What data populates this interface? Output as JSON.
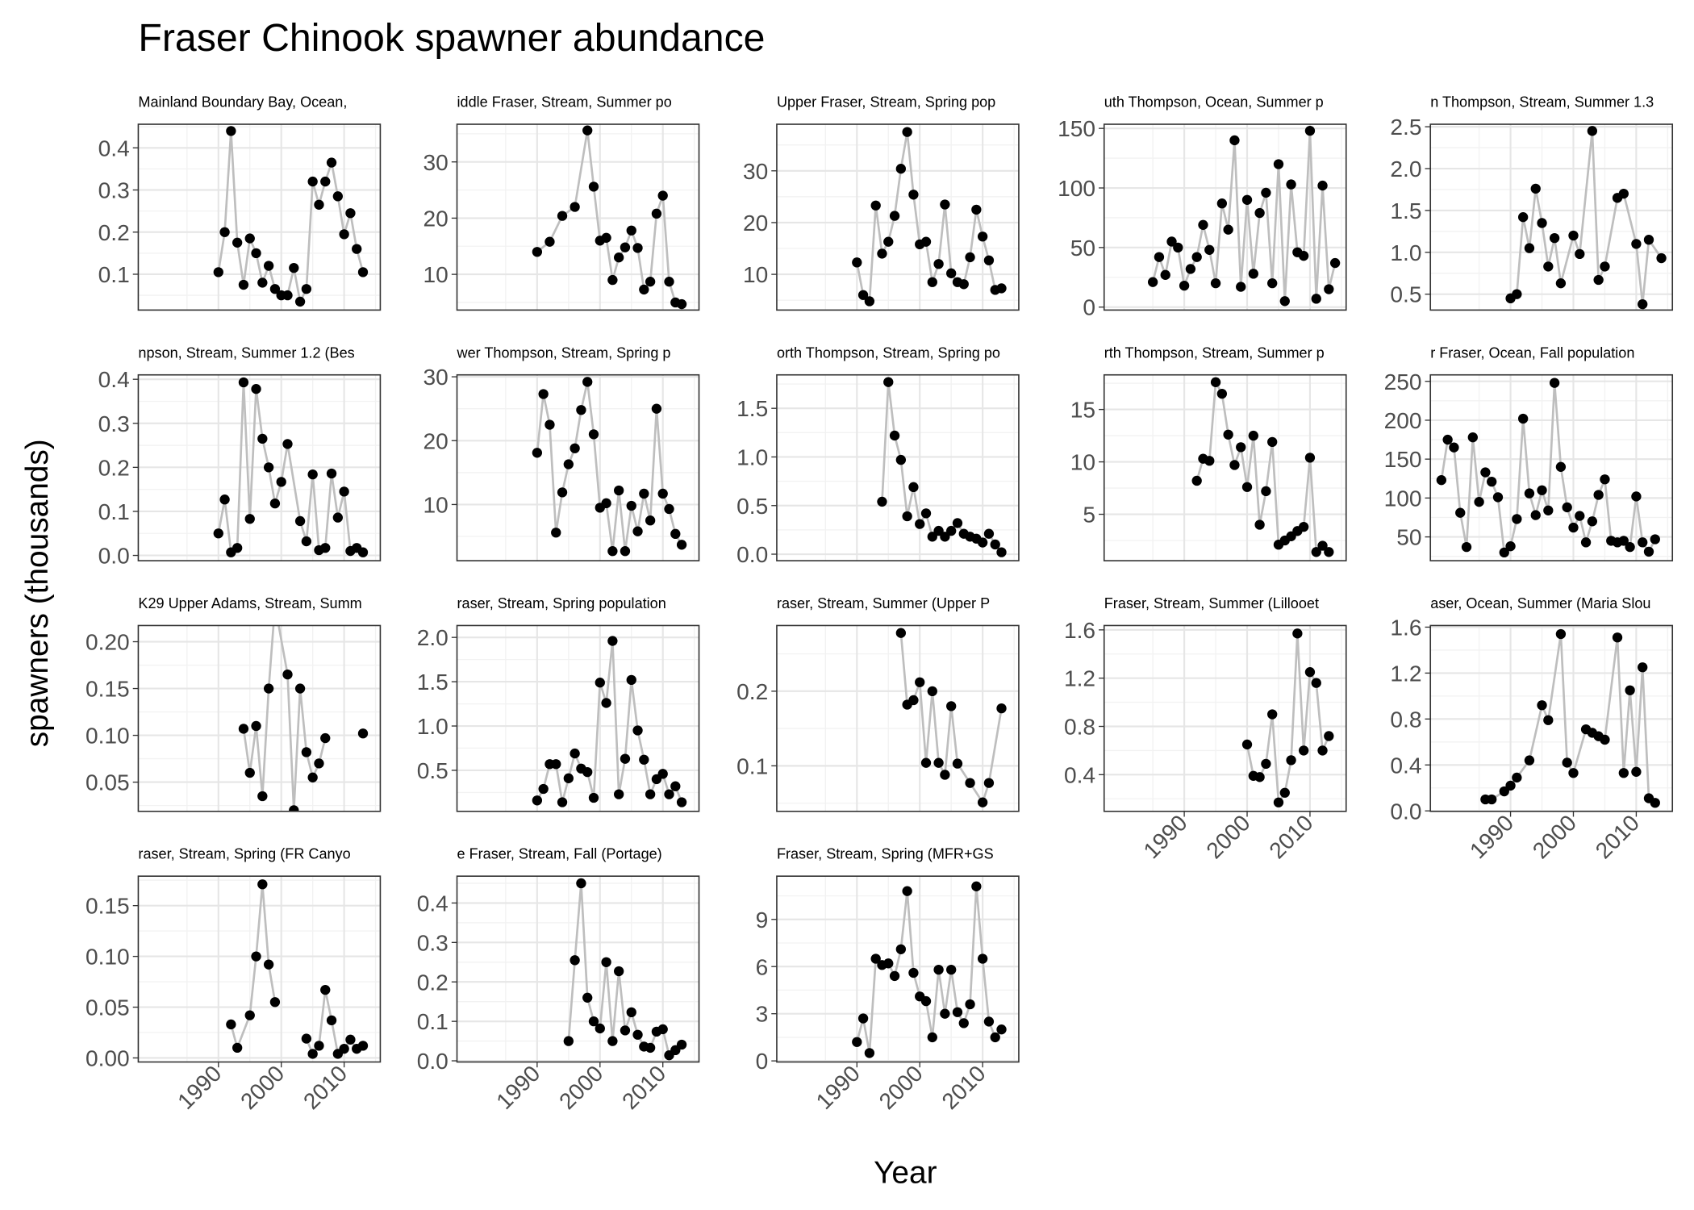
{
  "title": "Fraser Chinook spawner abundance",
  "x_label": "Year",
  "y_label": "spawners (thousands)",
  "xlim": [
    1977.25,
    2015.75
  ],
  "xticks": [
    1990,
    2000,
    2010
  ],
  "grid": true,
  "point_color": "#000000",
  "line_color": "#bebebe",
  "chart_data": [
    {
      "type": "line",
      "title": "Mainland Boundary Bay, Ocean,",
      "x": [
        1990,
        1991,
        1992,
        1993,
        1994,
        1995,
        1996,
        1997,
        1998,
        1999,
        2000,
        2001,
        2002,
        2003,
        2004,
        2005,
        2006,
        2007,
        2008,
        2009,
        2010,
        2011,
        2012,
        2013
      ],
      "values": [
        0.105,
        0.2,
        0.44,
        0.175,
        0.075,
        0.185,
        0.15,
        0.08,
        0.12,
        0.065,
        0.05,
        0.05,
        0.115,
        0.035,
        0.065,
        0.32,
        0.265,
        0.32,
        0.365,
        0.285,
        0.195,
        0.245,
        0.16,
        0.105
      ],
      "ylim": [
        0.015,
        0.456
      ],
      "yticks": [
        0.1,
        0.2,
        0.3,
        0.4
      ]
    },
    {
      "type": "line",
      "title": "iddle Fraser, Stream, Summer po",
      "x": [
        1990,
        1992,
        1994,
        1996,
        1998,
        1999,
        2000,
        2001,
        2002,
        2003,
        2004,
        2005,
        2006,
        2007,
        2008,
        2009,
        2010,
        2011,
        2012,
        2013
      ],
      "values": [
        14,
        15.8,
        20.4,
        22,
        35.6,
        25.6,
        16,
        16.5,
        9,
        13,
        14.8,
        17.8,
        14.7,
        7.3,
        8.7,
        20.8,
        24,
        8.7,
        5,
        4.7
      ],
      "ylim": [
        3.65,
        36.7
      ],
      "yticks": [
        10,
        20,
        30
      ]
    },
    {
      "type": "line",
      "title": "Upper Fraser, Stream, Spring pop",
      "x": [
        1990,
        1991,
        1992,
        1993,
        1994,
        1995,
        1996,
        1997,
        1998,
        1999,
        2000,
        2001,
        2002,
        2003,
        2004,
        2005,
        2006,
        2007,
        2008,
        2009,
        2010,
        2011,
        2012,
        2013
      ],
      "values": [
        12.3,
        6,
        4.8,
        23.3,
        14,
        16.3,
        21.3,
        30.4,
        37.5,
        25.4,
        15.8,
        16.3,
        8.5,
        12,
        23.5,
        10.2,
        8.5,
        8.1,
        13.3,
        22.5,
        17.3,
        12.7,
        7,
        7.3
      ],
      "ylim": [
        3.1,
        39
      ],
      "yticks": [
        10,
        20,
        30
      ]
    },
    {
      "type": "line",
      "title": "uth Thompson, Ocean, Summer p",
      "x": [
        1985,
        1986,
        1987,
        1988,
        1989,
        1990,
        1991,
        1992,
        1993,
        1994,
        1995,
        1996,
        1997,
        1998,
        1999,
        2000,
        2001,
        2002,
        2003,
        2004,
        2005,
        2006,
        2007,
        2008,
        2009,
        2010,
        2011,
        2012,
        2013,
        2014
      ],
      "values": [
        21,
        42,
        27,
        55,
        50,
        18,
        32,
        42,
        69,
        48,
        20,
        87,
        65,
        140,
        17,
        90,
        28,
        79,
        96,
        20,
        120,
        5,
        103,
        46,
        43,
        148,
        7,
        102,
        15,
        37
      ],
      "ylim": [
        -2.5,
        153.5
      ],
      "yticks": [
        0,
        50,
        100,
        150
      ]
    },
    {
      "type": "line",
      "title": "n Thompson, Stream, Summer 1.3",
      "x": [
        1990,
        1991,
        1992,
        1993,
        1994,
        1995,
        1996,
        1997,
        1998,
        2000,
        2001,
        2003,
        2004,
        2005,
        2007,
        2008,
        2010,
        2011,
        2012,
        2014
      ],
      "values": [
        0.45,
        0.5,
        1.42,
        1.05,
        1.76,
        1.35,
        0.83,
        1.17,
        0.63,
        1.2,
        0.98,
        2.45,
        0.67,
        0.83,
        1.65,
        1.7,
        1.1,
        0.38,
        1.15,
        0.93
      ],
      "ylim": [
        0.31,
        2.53
      ],
      "yticks": [
        0.5,
        {
          "value": 1,
          "label": "1.0"
        },
        1.5,
        {
          "value": 2,
          "label": "2.0"
        },
        2.5
      ]
    },
    {
      "type": "line",
      "title": "npson, Stream, Summer 1.2 (Bes",
      "x": [
        1990,
        1991,
        1992,
        1993,
        1994,
        1995,
        1996,
        1997,
        1998,
        1999,
        2000,
        2001,
        2003,
        2004,
        2005,
        2006,
        2007,
        2008,
        2009,
        2010,
        2011,
        2012,
        2013
      ],
      "values": [
        0.05,
        0.127,
        0.007,
        0.017,
        0.393,
        0.083,
        0.378,
        0.265,
        0.2,
        0.118,
        0.167,
        0.253,
        0.078,
        0.032,
        0.184,
        0.012,
        0.017,
        0.186,
        0.086,
        0.145,
        0.01,
        0.017,
        0.007
      ],
      "ylim": [
        -0.012,
        0.41
      ],
      "yticks": [
        {
          "value": 0,
          "label": "0.0"
        },
        0.1,
        0.2,
        0.3,
        0.4
      ]
    },
    {
      "type": "line",
      "title": "wer Thompson, Stream, Spring p",
      "x": [
        1990,
        1991,
        1992,
        1993,
        1994,
        1995,
        1996,
        1997,
        1998,
        1999,
        2000,
        2001,
        2002,
        2003,
        2004,
        2005,
        2006,
        2007,
        2008,
        2009,
        2010,
        2011,
        2012,
        2013
      ],
      "values": [
        18.1,
        27.3,
        22.5,
        5.6,
        11.9,
        16.3,
        18.8,
        24.8,
        29.2,
        21,
        9.5,
        10.2,
        2.7,
        12.2,
        2.7,
        9.8,
        5.8,
        11.7,
        7.5,
        25,
        11.7,
        9.3,
        5.4,
        3.7
      ],
      "ylim": [
        1.2,
        30.3
      ],
      "yticks": [
        10,
        20,
        30
      ]
    },
    {
      "type": "line",
      "title": "orth Thompson, Stream, Spring po",
      "x": [
        1994,
        1995,
        1996,
        1997,
        1998,
        1999,
        2000,
        2001,
        2002,
        2003,
        2004,
        2005,
        2006,
        2007,
        2008,
        2009,
        2010,
        2011,
        2012,
        2013
      ],
      "values": [
        0.54,
        1.77,
        1.22,
        0.97,
        0.39,
        0.69,
        0.31,
        0.42,
        0.18,
        0.24,
        0.18,
        0.24,
        0.32,
        0.21,
        0.18,
        0.16,
        0.12,
        0.21,
        0.1,
        0.02
      ],
      "ylim": [
        -0.067,
        1.844
      ],
      "yticks": [
        {
          "value": 0,
          "label": "0.0"
        },
        0.5,
        {
          "value": 1,
          "label": "1.0"
        },
        1.5
      ]
    },
    {
      "type": "line",
      "title": "rth Thompson, Stream, Summer p",
      "x": [
        1992,
        1993,
        1994,
        1995,
        1996,
        1997,
        1998,
        1999,
        2000,
        2001,
        2002,
        2003,
        2004,
        2005,
        2006,
        2007,
        2008,
        2009,
        2010,
        2011,
        2012,
        2013
      ],
      "values": [
        8.2,
        10.3,
        10.1,
        17.6,
        16.5,
        12.6,
        9.7,
        11.4,
        7.6,
        12.5,
        4,
        7.2,
        11.9,
        2.1,
        2.5,
        2.9,
        3.4,
        3.8,
        10.4,
        1.4,
        2,
        1.4
      ],
      "ylim": [
        0.57,
        18.3
      ],
      "yticks": [
        5,
        10,
        15
      ]
    },
    {
      "type": "line",
      "title": "r Fraser, Ocean, Fall population",
      "x": [
        1979,
        1980,
        1981,
        1982,
        1983,
        1984,
        1985,
        1986,
        1987,
        1988,
        1989,
        1990,
        1991,
        1992,
        1993,
        1994,
        1995,
        1996,
        1997,
        1998,
        1999,
        2000,
        2001,
        2002,
        2003,
        2004,
        2005,
        2006,
        2007,
        2008,
        2009,
        2010,
        2011,
        2012,
        2013
      ],
      "values": [
        123,
        175,
        165,
        81,
        37,
        178,
        95,
        133,
        121,
        101,
        30,
        38,
        73,
        202,
        106,
        78,
        110,
        84,
        248,
        140,
        88,
        62,
        77,
        43,
        70,
        104,
        124,
        45,
        43,
        45,
        37,
        102,
        43,
        31,
        47
      ],
      "ylim": [
        19.4,
        258.3
      ],
      "yticks": [
        50,
        100,
        150,
        200,
        250
      ]
    },
    {
      "type": "line",
      "title": "K29 Upper Adams, Stream, Summ",
      "x": [
        1994,
        1995,
        1996,
        1997,
        1998,
        1999,
        2001,
        2002,
        2003,
        2004,
        2005,
        2006,
        2007,
        2008,
        2013
      ],
      "values": [
        0.107,
        0.06,
        0.11,
        0.035,
        0.15,
        0.239,
        0.165,
        0.02,
        0.15,
        0.082,
        0.055,
        0.07,
        0.097,
        null,
        0.102
      ],
      "ylim": [
        0.0188,
        0.2173
      ],
      "yticks": [
        0.05,
        {
          "value": 0.1,
          "label": "0.10"
        },
        0.15,
        {
          "value": 0.2,
          "label": "0.20"
        }
      ]
    },
    {
      "type": "line",
      "title": "raser, Stream, Spring population",
      "x": [
        1990,
        1991,
        1992,
        1993,
        1994,
        1995,
        1996,
        1997,
        1998,
        1999,
        2000,
        2001,
        2002,
        2003,
        2004,
        2005,
        2006,
        2007,
        2008,
        2009,
        2010,
        2011,
        2012,
        2013
      ],
      "values": [
        0.16,
        0.29,
        0.57,
        0.57,
        0.14,
        0.41,
        0.69,
        0.52,
        0.48,
        0.19,
        1.49,
        1.26,
        1.96,
        0.23,
        0.63,
        1.52,
        0.95,
        0.62,
        0.23,
        0.4,
        0.46,
        0.23,
        0.32,
        0.14
      ],
      "ylim": [
        0.037,
        2.134
      ],
      "yticks": [
        0.5,
        {
          "value": 1,
          "label": "1.0"
        },
        1.5,
        {
          "value": 2,
          "label": "2.0"
        }
      ]
    },
    {
      "type": "line",
      "title": "raser, Stream, Summer (Upper P",
      "x": [
        1997,
        1998,
        1999,
        2000,
        2001,
        2002,
        2003,
        2004,
        2005,
        2006,
        2008,
        2010,
        2011,
        2013
      ],
      "values": [
        0.278,
        0.182,
        0.188,
        0.212,
        0.104,
        0.2,
        0.104,
        0.088,
        0.18,
        0.103,
        0.077,
        0.051,
        0.077,
        0.177
      ],
      "ylim": [
        0.039,
        0.288
      ],
      "yticks": [
        0.1,
        0.2
      ]
    },
    {
      "type": "line",
      "title": "Fraser, Stream, Summer (Lillooet",
      "x": [
        2000,
        2001,
        2002,
        2003,
        2004,
        2005,
        2006,
        2007,
        2008,
        2009,
        2010,
        2011,
        2012,
        2013
      ],
      "values": [
        0.65,
        0.39,
        0.38,
        0.49,
        0.9,
        0.17,
        0.25,
        0.52,
        1.57,
        0.6,
        1.25,
        1.16,
        0.6,
        0.72
      ],
      "ylim": [
        0.096,
        1.636
      ],
      "yticks": [
        0.4,
        0.8,
        1.2,
        1.6
      ]
    },
    {
      "type": "line",
      "title": "aser, Ocean, Summer (Maria Slou",
      "x": [
        1986,
        1987,
        1989,
        1990,
        1991,
        1993,
        1995,
        1996,
        1998,
        1999,
        2000,
        2002,
        2003,
        2004,
        2005,
        2007,
        2008,
        2009,
        2010,
        2011,
        2012,
        2013
      ],
      "values": [
        0.1,
        0.1,
        0.17,
        0.22,
        0.29,
        0.44,
        0.92,
        0.79,
        1.54,
        0.42,
        0.33,
        0.71,
        0.68,
        0.65,
        0.62,
        1.51,
        0.33,
        1.05,
        0.34,
        1.25,
        0.11,
        0.07
      ],
      "ylim": [
        -0.004,
        1.614
      ],
      "yticks": [
        {
          "value": 0,
          "label": "0.0"
        },
        0.4,
        0.8,
        1.2,
        1.6
      ]
    },
    {
      "type": "line",
      "title": "raser, Stream, Spring (FR Canyo",
      "x": [
        1992,
        1993,
        1995,
        1996,
        1997,
        1998,
        1999,
        2000,
        2004,
        2005,
        2006,
        2007,
        2008,
        2009,
        2010,
        2011,
        2012,
        2013
      ],
      "values": [
        0.033,
        0.01,
        0.042,
        0.1,
        0.171,
        0.092,
        0.055,
        null,
        0.019,
        0.004,
        0.012,
        0.067,
        0.037,
        0.004,
        0.009,
        0.018,
        0.009,
        0.012
      ],
      "ylim": [
        -0.004,
        0.179
      ],
      "yticks": [
        {
          "value": 0,
          "label": "0.00"
        },
        0.05,
        {
          "value": 0.1,
          "label": "0.10"
        },
        0.15
      ]
    },
    {
      "type": "line",
      "title": "e Fraser, Stream, Fall (Portage)",
      "x": [
        1995,
        1996,
        1997,
        1998,
        1999,
        2000,
        2001,
        2002,
        2003,
        2004,
        2005,
        2006,
        2007,
        2008,
        2009,
        2010,
        2011,
        2012,
        2013
      ],
      "values": [
        0.05,
        0.255,
        0.45,
        0.16,
        0.1,
        0.082,
        0.25,
        0.05,
        0.227,
        0.077,
        0.123,
        0.066,
        0.036,
        0.033,
        0.074,
        0.08,
        0.014,
        0.027,
        0.041
      ],
      "ylim": [
        -0.003,
        0.468
      ],
      "yticks": [
        {
          "value": 0,
          "label": "0.0"
        },
        0.1,
        0.2,
        0.3,
        0.4
      ]
    },
    {
      "type": "line",
      "title": "Fraser, Stream, Spring (MFR+GS",
      "x": [
        1990,
        1991,
        1992,
        1993,
        1994,
        1995,
        1996,
        1997,
        1998,
        1999,
        2000,
        2001,
        2002,
        2003,
        2004,
        2005,
        2006,
        2007,
        2008,
        2009,
        2010,
        2011,
        2012,
        2013
      ],
      "values": [
        1.2,
        2.7,
        0.5,
        6.5,
        6.1,
        6.2,
        5.4,
        7.1,
        10.8,
        5.6,
        4.1,
        3.8,
        1.5,
        5.8,
        3,
        5.8,
        3.1,
        2.4,
        3.6,
        11.1,
        6.5,
        2.5,
        1.5,
        2
      ],
      "ylim": [
        -0.07,
        11.75
      ],
      "yticks": [
        0,
        3,
        6,
        9
      ]
    }
  ]
}
